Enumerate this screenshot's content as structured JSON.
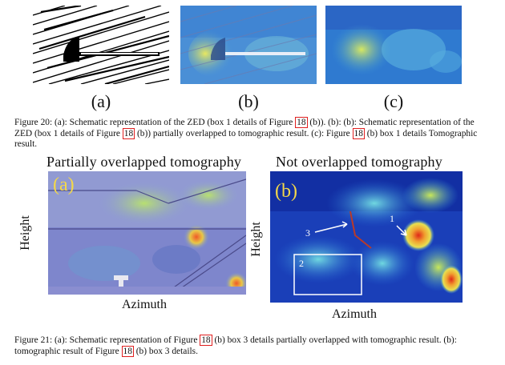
{
  "figure20": {
    "panels": [
      {
        "label": "(a)"
      },
      {
        "label": "(b)"
      },
      {
        "label": "(c)"
      }
    ],
    "caption": {
      "p1": "Figure 20: (a): Schematic representation of the ZED (box 1 details of Figure ",
      "r1": "18",
      "p2": " (b)). (b): (b): Schematic representation of the ZED (box 1 details of Figure ",
      "r2": "18",
      "p3": " (b)) partially overlapped to tomographic result. (c): Figure ",
      "r3": "18",
      "p4": " (b) box 1 details Tomographic result."
    }
  },
  "figure21": {
    "left": {
      "title": "Partially overlapped tomography",
      "letter": "(a)",
      "ylabel": "Height",
      "xlabel": "Azimuth"
    },
    "right": {
      "title": "Not overlapped tomography",
      "letter": "(b)",
      "ylabel": "Height",
      "xlabel": "Azimuth",
      "annotations": [
        "1",
        "2",
        "3"
      ]
    },
    "caption": {
      "p1": "Figure 21: (a): Schematic representation of Figure ",
      "r1": "18",
      "p2": " (b) box 3 details partially overlapped with tomographic result. (b): tomographic result of Figure ",
      "r2": "18",
      "p3": " (b) box 3 details."
    }
  }
}
